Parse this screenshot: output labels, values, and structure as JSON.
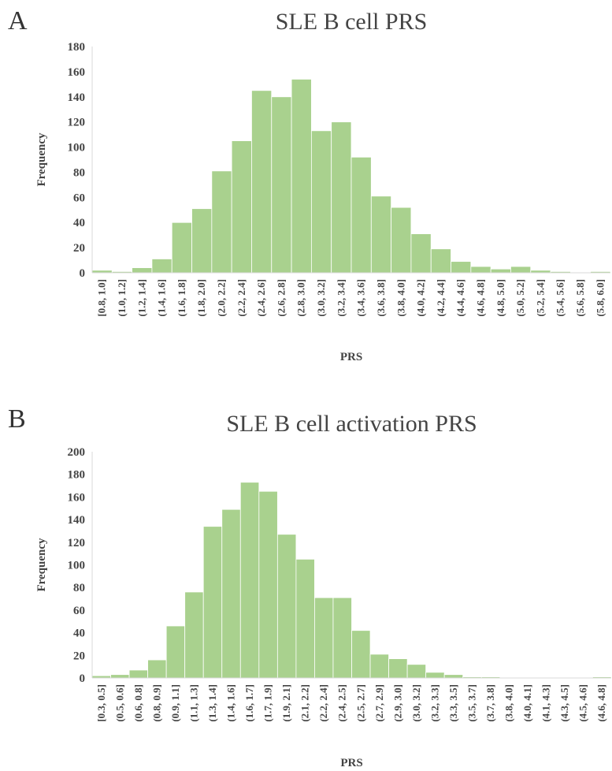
{
  "panels": [
    {
      "letter": "A"
    },
    {
      "letter": "B"
    }
  ],
  "colors": {
    "bar": "#a9d18e",
    "axis": "#d9d9d9",
    "text": "#444444"
  },
  "chart_data": [
    {
      "type": "bar",
      "title": "SLE B cell PRS",
      "xlabel": "PRS",
      "ylabel": "Frequency",
      "ylim": [
        0,
        180
      ],
      "yticks": [
        0,
        20,
        40,
        60,
        80,
        100,
        120,
        140,
        160,
        180
      ],
      "grid": false,
      "categories": [
        "[0.8, 1.0]",
        "(1.0, 1.2]",
        "(1.2, 1.4]",
        "(1.4, 1.6]",
        "(1.6, 1.8]",
        "(1.8, 2.0]",
        "(2.0, 2.2]",
        "(2.2, 2.4]",
        "(2.4, 2.6]",
        "(2.6, 2.8]",
        "(2.8, 3.0]",
        "(3.0, 3.2]",
        "(3.2, 3.4]",
        "(3.4, 3.6]",
        "(3.6, 3.8]",
        "(3.8, 4.0]",
        "(4.0, 4.2]",
        "(4.2, 4.4]",
        "(4.4, 4.6]",
        "(4.6, 4.8]",
        "(4.8, 5.0]",
        "(5.0, 5.2]",
        "(5.2, 5.4]",
        "(5.4, 5.6]",
        "(5.6, 5.8]",
        "(5.8, 6.0]"
      ],
      "values": [
        2,
        1,
        4,
        11,
        40,
        51,
        81,
        105,
        145,
        140,
        154,
        113,
        120,
        92,
        61,
        52,
        31,
        19,
        9,
        5,
        3,
        5,
        2,
        1,
        0,
        1
      ]
    },
    {
      "type": "bar",
      "title": "SLE B cell activation PRS",
      "xlabel": "PRS",
      "ylabel": "Frequency",
      "ylim": [
        0,
        200
      ],
      "yticks": [
        0,
        20,
        40,
        60,
        80,
        100,
        120,
        140,
        160,
        180,
        200
      ],
      "grid": false,
      "categories": [
        "[0.3, 0.5]",
        "(0.5, 0.6]",
        "(0.6, 0.8]",
        "(0.8, 0.9]",
        "(0.9, 1.1]",
        "(1.1, 1.3]",
        "(1.3, 1.4]",
        "(1.4, 1.6]",
        "(1.6, 1.7]",
        "(1.7, 1.9]",
        "(1.9, 2.1]",
        "(2.1, 2.2]",
        "(2.2, 2.4]",
        "(2.4, 2.5]",
        "(2.5, 2.7]",
        "(2.7, 2.9]",
        "(2.9, 3.0]",
        "(3.0, 3.2]",
        "(3.2, 3.3]",
        "(3.3, 3.5]",
        "(3.5, 3.7]",
        "(3.7, 3.8]",
        "(3.8, 4.0]",
        "(4.0, 4.1]",
        "(4.1, 4.3]",
        "(4.3, 4.5]",
        "(4.5, 4.6]",
        "(4.6, 4.8]"
      ],
      "values": [
        2,
        3,
        7,
        16,
        46,
        76,
        134,
        149,
        173,
        165,
        127,
        105,
        71,
        71,
        42,
        21,
        17,
        12,
        5,
        3,
        1,
        1,
        0,
        0,
        0,
        0,
        0,
        1
      ]
    }
  ]
}
